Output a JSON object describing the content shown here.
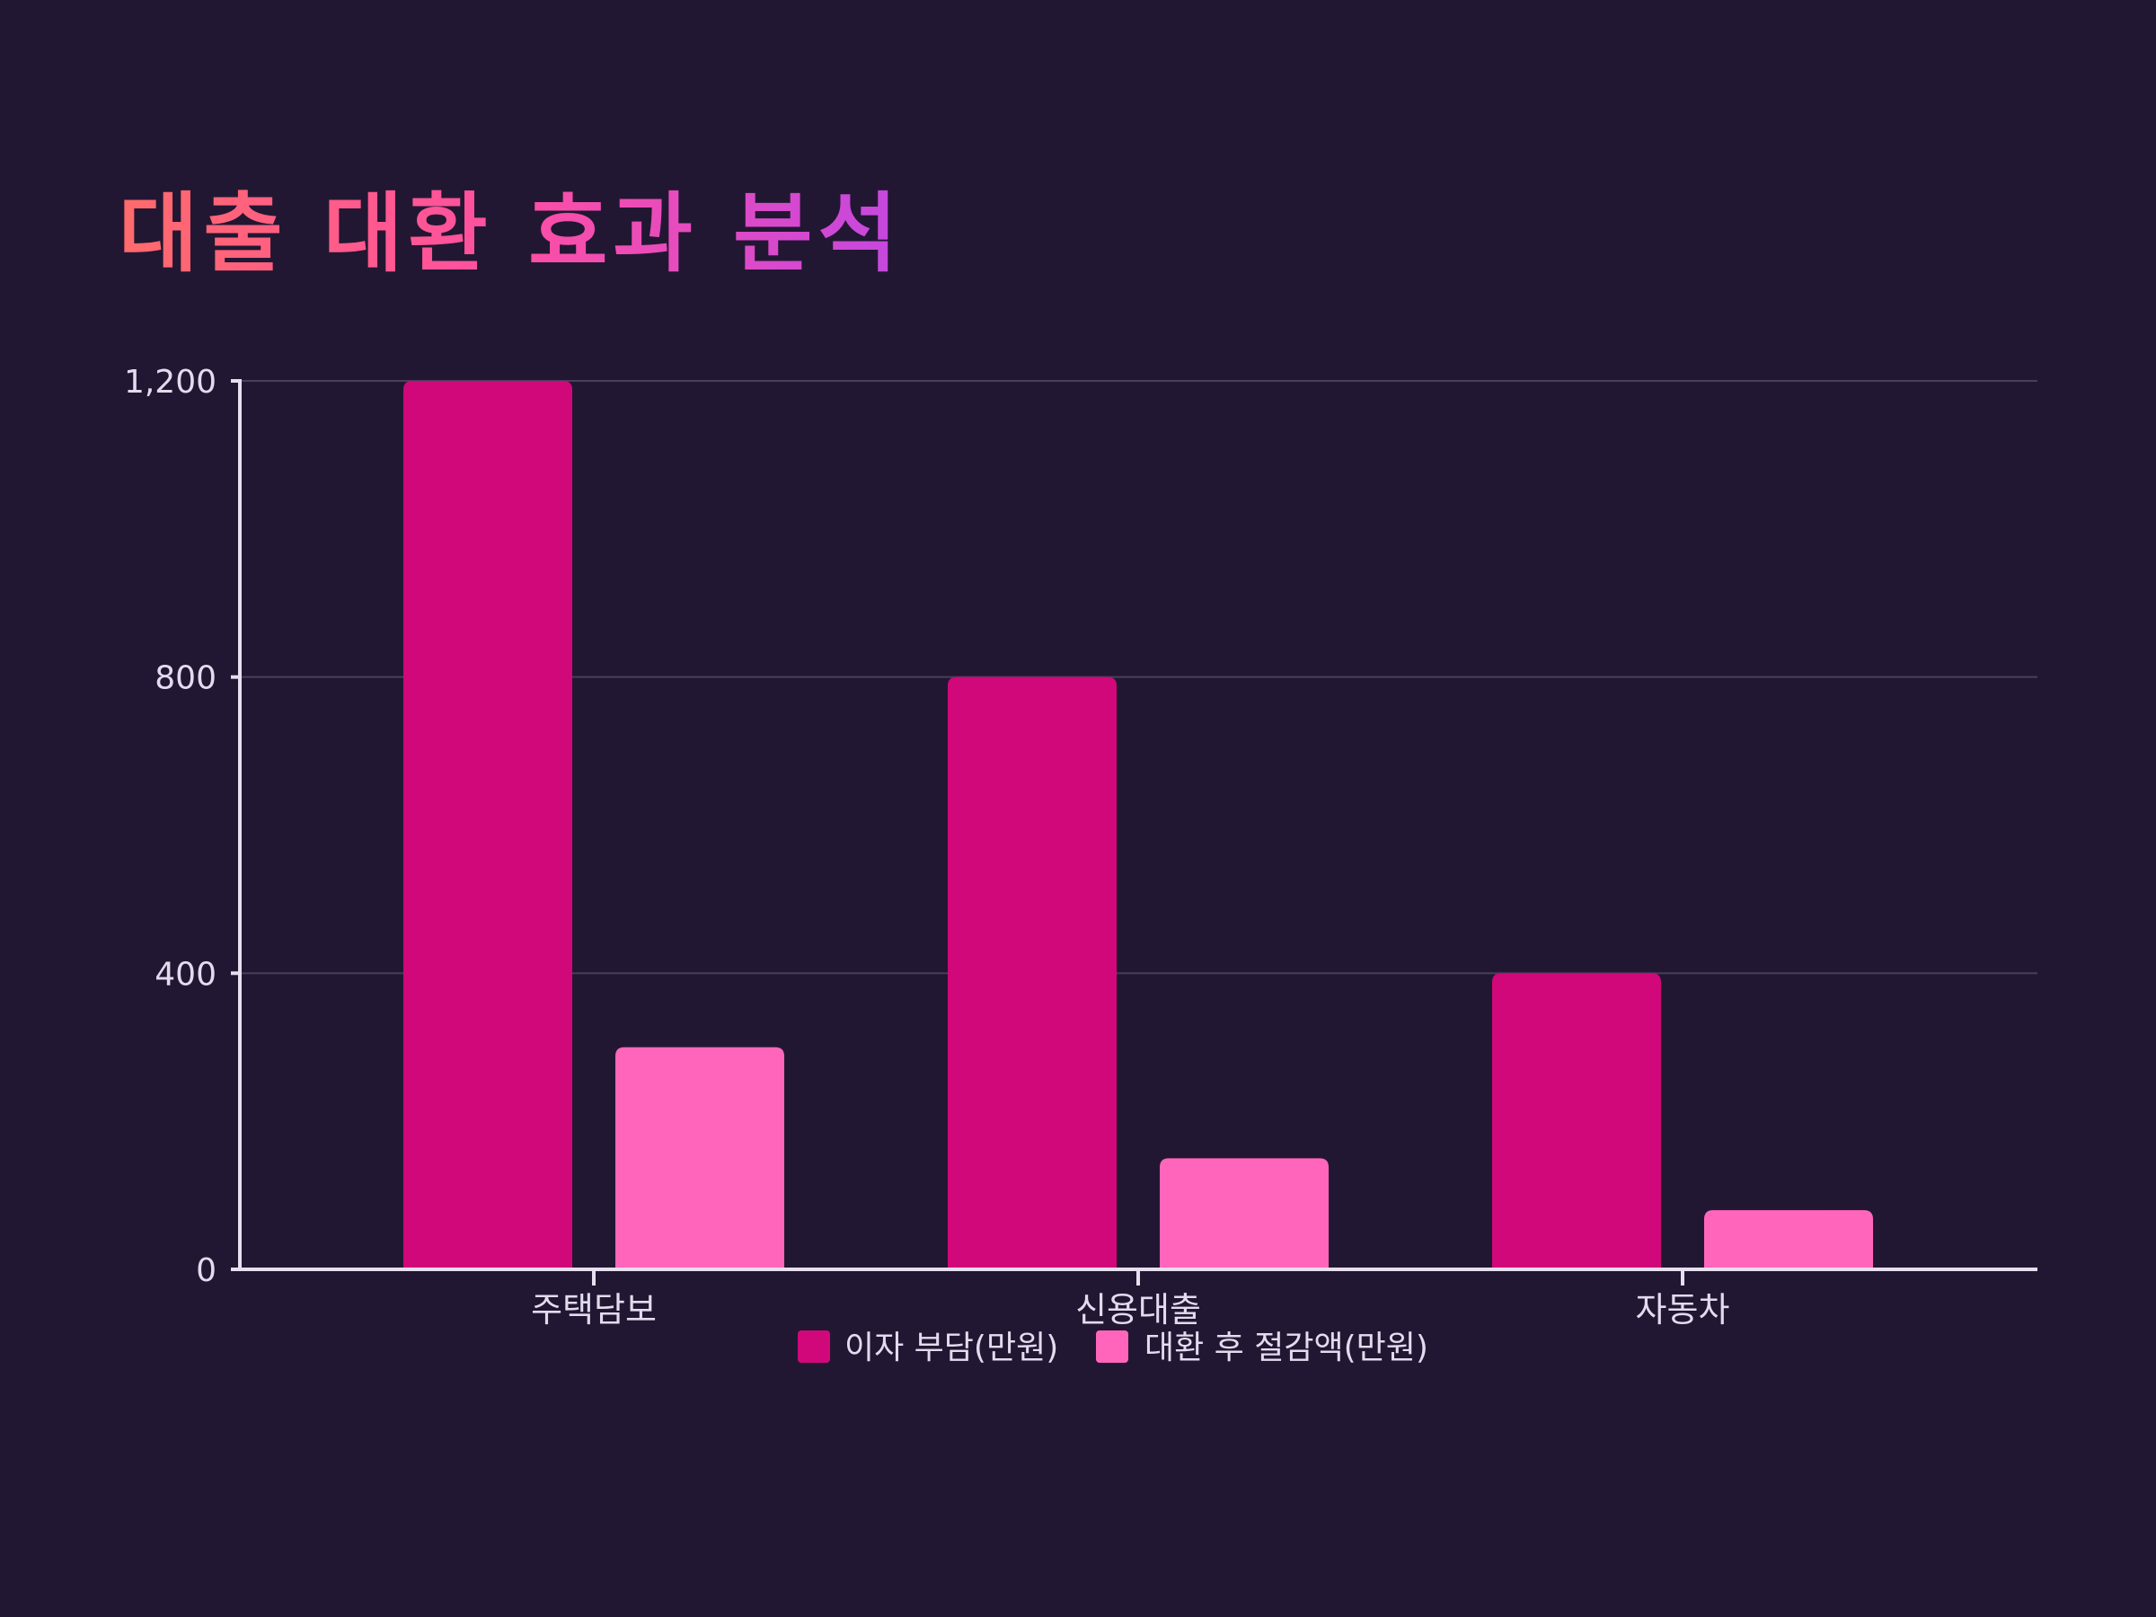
{
  "chart_data": {
    "type": "bar",
    "title": "대출 대환 효과 분석",
    "xlabel": "",
    "ylabel": "",
    "categories": [
      "주택담보",
      "신용대출",
      "자동차"
    ],
    "series": [
      {
        "name": "이자 부담(만원)",
        "values": [
          1200,
          800,
          400
        ],
        "color": "#d1087a"
      },
      {
        "name": "대환 후 절감액(만원)",
        "values": [
          300,
          150,
          80
        ],
        "color": "#ff66bb"
      }
    ],
    "ylim": [
      0,
      1200
    ],
    "yticks": [
      0,
      400,
      800,
      1200
    ],
    "ytick_labels": [
      "0",
      "400",
      "800",
      "1,200"
    ],
    "grid": true,
    "legend_position": "bottom-center"
  },
  "theme": {
    "background": "#221732",
    "title_gradient": [
      "#ff6b6b",
      "#ff4fa3",
      "#c447e0"
    ]
  }
}
